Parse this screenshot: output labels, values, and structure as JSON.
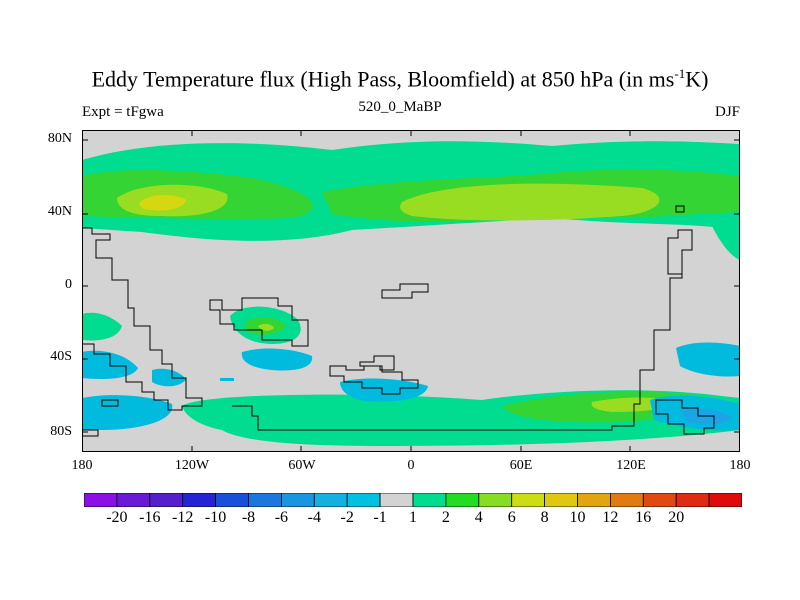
{
  "title": {
    "main": "Eddy Temperature flux (High Pass, Bloomfield) at 850 hPa (in ms",
    "sup": "-1",
    "end": "K)"
  },
  "subtitle": {
    "left": "Expt = tFgwa",
    "center": "520_0_MaBP",
    "right": "DJF"
  },
  "axes": {
    "y_ticks": [
      "80N",
      "40N",
      "0",
      "40S",
      "80S"
    ],
    "x_ticks": [
      "180",
      "120W",
      "60W",
      "0",
      "60E",
      "120E",
      "180"
    ]
  },
  "colors": {
    "background_field": "#d3d3d3",
    "positive": [
      "#00dd90",
      "#33d433",
      "#99dd22",
      "#d7d711"
    ],
    "negative": [
      "#00bbdd",
      "#1aa6e6"
    ]
  },
  "colorbar": {
    "labels": [
      "-20",
      "-16",
      "-12",
      "-10",
      "-8",
      "-6",
      "-4",
      "-2",
      "-1",
      "1",
      "2",
      "4",
      "6",
      "8",
      "10",
      "12",
      "16",
      "20"
    ],
    "colors": [
      "#8a10e6",
      "#6a1ad6",
      "#5520cc",
      "#2424d6",
      "#1a4fd9",
      "#1a78dd",
      "#1a96e0",
      "#14b0e0",
      "#00c2e0",
      "#d3d3d3",
      "#00dd90",
      "#22dd22",
      "#88dd22",
      "#ccdd11",
      "#e0c811",
      "#e0a511",
      "#e07a11",
      "#e04a11",
      "#e02a11",
      "#e00a0a"
    ]
  }
}
